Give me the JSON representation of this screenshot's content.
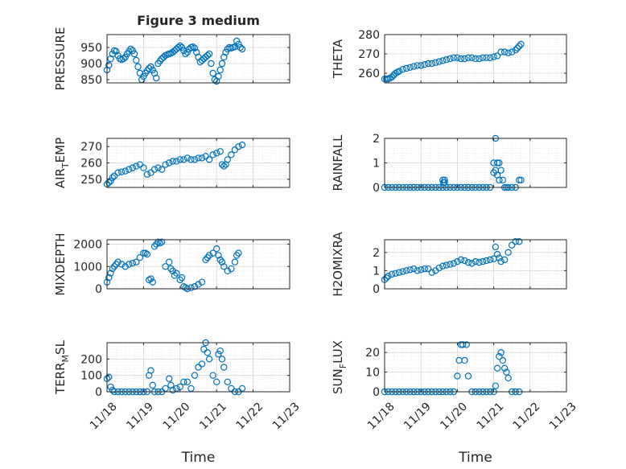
{
  "figure": {
    "title": "Figure 3 medium",
    "marker_color": "#0072BD",
    "axis_color": "#262626"
  },
  "chart_data": [
    {
      "type": "scatter",
      "title": "Figure 3 medium",
      "ylabel_main": "PRESSURE",
      "ylabel_sub": "",
      "ylabel_tail": "",
      "ylim": [
        840,
        990
      ],
      "yticks": [
        850,
        900,
        950
      ],
      "xticks": [],
      "xlabel": "",
      "x": [
        0,
        0.05,
        0.1,
        0.15,
        0.2,
        0.25,
        0.3,
        0.35,
        0.4,
        0.45,
        0.5,
        0.55,
        0.6,
        0.65,
        0.7,
        0.75,
        0.8,
        0.85,
        0.9,
        0.95,
        1.0,
        1.05,
        1.1,
        1.15,
        1.2,
        1.25,
        1.3,
        1.35,
        1.4,
        1.45,
        1.5,
        1.55,
        1.6,
        1.65,
        1.7,
        1.75,
        1.8,
        1.85,
        1.9,
        1.95,
        2.0,
        2.05,
        2.1,
        2.15,
        2.2,
        2.25,
        2.3,
        2.35,
        2.4,
        2.45,
        2.5,
        2.55,
        2.6,
        2.65,
        2.7,
        2.75,
        2.8,
        2.85,
        2.9,
        2.95,
        3.0,
        3.05,
        3.1,
        3.15,
        3.2,
        3.25,
        3.3,
        3.35,
        3.4,
        3.45,
        3.5,
        3.55,
        3.6,
        3.65,
        3.7
      ],
      "y": [
        880,
        895,
        915,
        930,
        940,
        938,
        925,
        915,
        912,
        915,
        920,
        930,
        938,
        945,
        940,
        930,
        910,
        890,
        870,
        850,
        860,
        870,
        878,
        885,
        890,
        880,
        870,
        855,
        900,
        908,
        915,
        920,
        925,
        928,
        930,
        932,
        935,
        940,
        945,
        950,
        955,
        950,
        940,
        930,
        935,
        945,
        950,
        952,
        948,
        935,
        920,
        905,
        910,
        915,
        920,
        925,
        930,
        900,
        870,
        850,
        845,
        860,
        880,
        900,
        920,
        935,
        945,
        950,
        948,
        950,
        952,
        970,
        960,
        950,
        945
      ]
    },
    {
      "type": "scatter",
      "title": "",
      "ylabel_main": "THETA",
      "ylabel_sub": "",
      "ylabel_tail": "",
      "ylim": [
        255,
        280
      ],
      "yticks": [
        260,
        270,
        280
      ],
      "xticks": [],
      "xlabel": "",
      "x": [
        0,
        0.05,
        0.1,
        0.15,
        0.2,
        0.25,
        0.3,
        0.35,
        0.4,
        0.5,
        0.6,
        0.7,
        0.8,
        0.9,
        1.0,
        1.1,
        1.2,
        1.3,
        1.4,
        1.5,
        1.6,
        1.7,
        1.8,
        1.9,
        2.0,
        2.1,
        2.2,
        2.3,
        2.4,
        2.5,
        2.6,
        2.7,
        2.8,
        2.9,
        3.0,
        3.1,
        3.2,
        3.3,
        3.4,
        3.5,
        3.6,
        3.65,
        3.7,
        3.75
      ],
      "y": [
        257,
        257,
        257,
        257.5,
        258,
        259,
        260,
        260.5,
        261,
        262,
        262.5,
        263,
        263.5,
        264,
        264,
        264.5,
        265,
        265,
        265.5,
        266,
        266.5,
        267,
        267.5,
        268,
        268,
        267.5,
        267.5,
        268,
        268,
        267.5,
        267.5,
        268,
        268,
        268,
        268.5,
        269,
        271,
        271,
        270.5,
        271,
        272,
        273,
        274,
        275
      ]
    },
    {
      "type": "scatter",
      "title": "",
      "ylabel_main": "AIR",
      "ylabel_sub": "T",
      "ylabel_tail": "EMP",
      "ylim": [
        245,
        275
      ],
      "yticks": [
        250,
        260,
        270
      ],
      "xticks": [],
      "xlabel": "",
      "x": [
        0,
        0.05,
        0.1,
        0.15,
        0.2,
        0.3,
        0.4,
        0.5,
        0.6,
        0.7,
        0.8,
        0.9,
        1.0,
        1.1,
        1.2,
        1.3,
        1.4,
        1.5,
        1.6,
        1.7,
        1.8,
        1.9,
        2.0,
        2.1,
        2.2,
        2.3,
        2.4,
        2.5,
        2.6,
        2.7,
        2.8,
        2.9,
        3.0,
        3.1,
        3.15,
        3.2,
        3.25,
        3.3,
        3.4,
        3.5,
        3.6,
        3.7
      ],
      "y": [
        247,
        248,
        249,
        251,
        252,
        254,
        254.5,
        255,
        256,
        257,
        258,
        259,
        257,
        253,
        254,
        256,
        257,
        256,
        259,
        260,
        261,
        261,
        262,
        262,
        263,
        262,
        262,
        263,
        263,
        264,
        262,
        265,
        266,
        267,
        259,
        258,
        259,
        262,
        265,
        268,
        270,
        271
      ]
    },
    {
      "type": "scatter",
      "title": "",
      "ylabel_main": "RAINFALL",
      "ylabel_sub": "",
      "ylabel_tail": "",
      "ylim": [
        0,
        2
      ],
      "yticks": [
        0,
        1,
        2
      ],
      "xticks": [],
      "xlabel": "",
      "x": [
        0,
        0.1,
        0.2,
        0.3,
        0.4,
        0.5,
        0.6,
        0.7,
        0.8,
        0.9,
        1.0,
        1.1,
        1.2,
        1.3,
        1.4,
        1.5,
        1.6,
        1.7,
        1.8,
        1.9,
        2.0,
        2.1,
        2.2,
        2.3,
        2.4,
        2.5,
        2.6,
        2.7,
        2.8,
        2.9,
        3.0,
        3.05,
        3.1,
        3.15,
        3.2,
        3.25,
        3.3,
        3.35,
        3.4,
        3.5,
        3.6,
        3.7,
        3.75,
        1.6,
        1.65,
        1.62,
        1.65,
        3.0,
        3.05,
        3.1,
        3.15
      ],
      "y": [
        0,
        0,
        0,
        0,
        0,
        0,
        0,
        0,
        0,
        0,
        0,
        0,
        0,
        0,
        0,
        0,
        0,
        0,
        0,
        0,
        0,
        0,
        0,
        0,
        0,
        0,
        0,
        0,
        0,
        0,
        1.0,
        2.0,
        1.0,
        1.0,
        0.7,
        0.3,
        0,
        0,
        0,
        0,
        0,
        0.3,
        0.3,
        0.3,
        0.3,
        0.2,
        0.2,
        0.6,
        0.7,
        0.5,
        0.3
      ]
    },
    {
      "type": "scatter",
      "title": "",
      "ylabel_main": "MIXDEPTH",
      "ylabel_sub": "",
      "ylabel_tail": "",
      "ylim": [
        0,
        2200
      ],
      "yticks": [
        0,
        1000,
        2000
      ],
      "xticks": [],
      "xlabel": "",
      "x": [
        0,
        0.05,
        0.1,
        0.15,
        0.2,
        0.25,
        0.3,
        0.4,
        0.5,
        0.6,
        0.7,
        0.8,
        0.9,
        1.0,
        1.05,
        1.1,
        1.15,
        1.2,
        1.25,
        1.3,
        1.35,
        1.4,
        1.45,
        1.5,
        1.6,
        1.7,
        1.75,
        1.8,
        1.85,
        1.9,
        2.0,
        2.05,
        2.1,
        2.15,
        2.2,
        2.3,
        2.4,
        2.5,
        2.6,
        2.7,
        2.75,
        2.8,
        2.9,
        3.0,
        3.05,
        3.1,
        3.15,
        3.2,
        3.3,
        3.4,
        3.5,
        3.55,
        3.6
      ],
      "y": [
        300,
        500,
        700,
        900,
        1000,
        1100,
        1200,
        1100,
        1000,
        1100,
        1150,
        1200,
        1400,
        1600,
        1600,
        1550,
        400,
        450,
        300,
        1900,
        2000,
        2100,
        2050,
        2100,
        1000,
        1200,
        900,
        800,
        600,
        700,
        400,
        500,
        100,
        50,
        0,
        50,
        100,
        200,
        300,
        1300,
        1400,
        1500,
        1600,
        1800,
        1500,
        1300,
        1200,
        1000,
        800,
        900,
        1200,
        1500,
        1600
      ]
    },
    {
      "type": "scatter",
      "title": "",
      "ylabel_main": "H2OMIXRA",
      "ylabel_sub": "",
      "ylabel_tail": "",
      "ylim": [
        0,
        2.7
      ],
      "yticks": [
        0,
        1,
        2
      ],
      "xticks": [],
      "xlabel": "",
      "x": [
        0,
        0.05,
        0.1,
        0.2,
        0.3,
        0.4,
        0.5,
        0.6,
        0.7,
        0.8,
        0.9,
        1.0,
        1.1,
        1.2,
        1.3,
        1.4,
        1.5,
        1.6,
        1.7,
        1.8,
        1.9,
        2.0,
        2.1,
        2.2,
        2.3,
        2.4,
        2.5,
        2.6,
        2.7,
        2.8,
        2.9,
        3.0,
        3.05,
        3.1,
        3.15,
        3.2,
        3.3,
        3.4,
        3.5,
        3.6,
        3.7
      ],
      "y": [
        0.5,
        0.6,
        0.7,
        0.8,
        0.85,
        0.9,
        0.95,
        1.0,
        1.05,
        1.1,
        1.0,
        1.05,
        1.1,
        1.1,
        0.9,
        1.0,
        1.15,
        1.25,
        1.3,
        1.35,
        1.4,
        1.5,
        1.6,
        1.55,
        1.45,
        1.4,
        1.5,
        1.45,
        1.5,
        1.55,
        1.6,
        1.65,
        2.3,
        1.9,
        1.7,
        1.5,
        1.6,
        2.0,
        2.4,
        2.6,
        2.6
      ]
    },
    {
      "type": "scatter",
      "title": "",
      "ylabel_main": "TERR",
      "ylabel_sub": "M",
      "ylabel_tail": "SL",
      "ylim": [
        0,
        300
      ],
      "yticks": [
        0,
        100,
        200
      ],
      "xticks": [
        "11/18",
        "11/19",
        "11/20",
        "11/21",
        "11/22",
        "11/23"
      ],
      "xlabel": "Time",
      "x": [
        0,
        0.05,
        0.1,
        0.15,
        0.2,
        0.3,
        0.4,
        0.5,
        0.6,
        0.7,
        0.8,
        0.9,
        1.0,
        1.1,
        1.15,
        1.2,
        1.25,
        1.3,
        1.4,
        1.5,
        1.6,
        1.7,
        1.75,
        1.8,
        1.9,
        2.0,
        2.1,
        2.2,
        2.3,
        2.4,
        2.5,
        2.6,
        2.65,
        2.7,
        2.75,
        2.8,
        2.9,
        3.0,
        3.05,
        3.1,
        3.15,
        3.2,
        3.3,
        3.4,
        3.5,
        3.6,
        3.7
      ],
      "y": [
        80,
        90,
        30,
        10,
        0,
        0,
        0,
        0,
        0,
        0,
        0,
        0,
        0,
        0,
        100,
        130,
        40,
        0,
        0,
        0,
        20,
        80,
        40,
        10,
        20,
        30,
        60,
        60,
        20,
        100,
        150,
        170,
        260,
        300,
        240,
        200,
        100,
        60,
        230,
        250,
        200,
        150,
        60,
        20,
        0,
        0,
        20
      ]
    },
    {
      "type": "scatter",
      "title": "",
      "ylabel_main": "SUN",
      "ylabel_sub": "F",
      "ylabel_tail": "LUX",
      "ylim": [
        0,
        25
      ],
      "yticks": [
        0,
        10,
        20
      ],
      "xticks": [
        "11/18",
        "11/19",
        "11/20",
        "11/21",
        "11/22",
        "11/23"
      ],
      "xlabel": "Time",
      "x": [
        0,
        0.1,
        0.2,
        0.3,
        0.4,
        0.5,
        0.6,
        0.7,
        0.8,
        0.9,
        1.0,
        1.1,
        1.2,
        1.3,
        1.4,
        1.5,
        1.6,
        1.7,
        1.8,
        1.9,
        2.0,
        2.05,
        2.1,
        2.15,
        2.2,
        2.25,
        2.3,
        2.4,
        2.5,
        2.6,
        2.7,
        2.8,
        2.9,
        3.0,
        3.05,
        3.1,
        3.15,
        3.2,
        3.25,
        3.3,
        3.35,
        3.4,
        3.5,
        3.6,
        3.7
      ],
      "y": [
        0,
        0,
        0,
        0,
        0,
        0,
        0,
        0,
        0,
        0,
        0,
        0,
        0,
        0,
        0,
        0,
        0,
        0,
        0,
        0,
        8,
        16,
        24,
        24,
        16,
        24,
        8,
        0,
        0,
        0,
        0,
        0,
        0,
        0,
        3,
        12,
        18,
        20,
        16,
        12,
        10,
        7,
        0,
        0,
        0
      ]
    }
  ]
}
